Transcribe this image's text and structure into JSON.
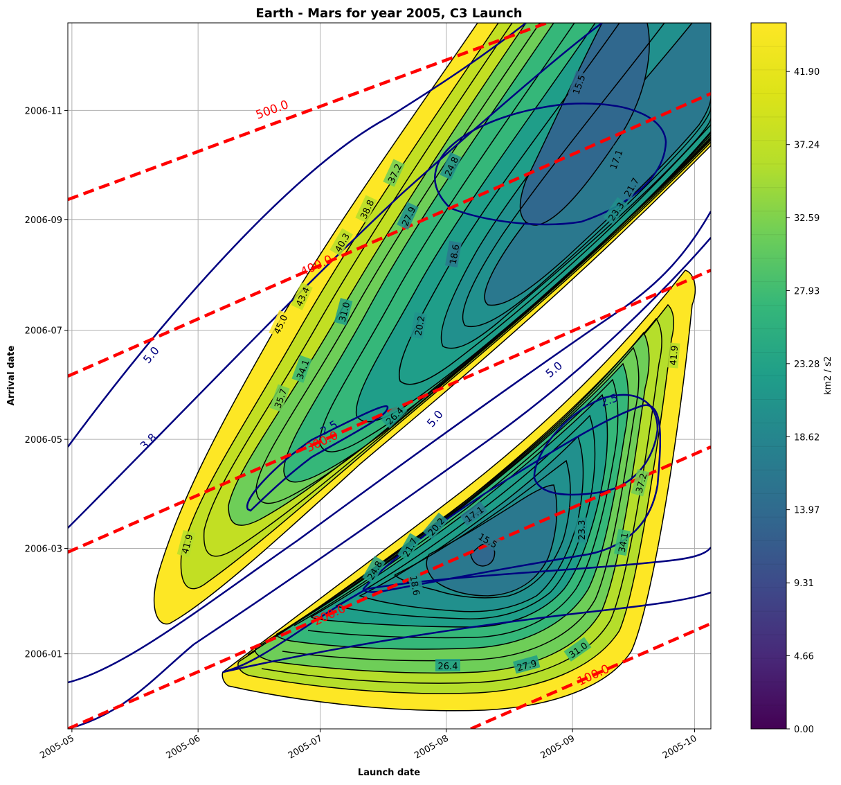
{
  "chart_data": {
    "type": "contour",
    "title": "Earth - Mars for year 2005, C3 Launch",
    "xlabel": "Launch date",
    "ylabel": "Arrival date",
    "x_range": [
      "2005-04-30",
      "2005-10-05"
    ],
    "y_range": [
      "2005-11-20",
      "2006-12-20"
    ],
    "x_ticks": [
      "2005-05",
      "2005-06",
      "2005-07",
      "2005-08",
      "2005-09",
      "2005-10"
    ],
    "y_ticks": [
      "2006-01",
      "2006-03",
      "2006-05",
      "2006-07",
      "2006-09",
      "2006-11"
    ],
    "grid": true,
    "colorbar": {
      "label": "km2 / s2",
      "colormap": "viridis",
      "range": [
        0,
        45
      ],
      "ticks": [
        "0.00",
        "4.66",
        "9.31",
        "13.97",
        "18.62",
        "23.28",
        "27.93",
        "32.59",
        "37.24",
        "41.90"
      ]
    },
    "c3_contour_labels_upper_window": [
      "15.5",
      "17.1",
      "18.6",
      "20.2",
      "21.7",
      "23.3",
      "24.8",
      "26.4",
      "27.9",
      "31.0",
      "34.1",
      "35.7",
      "37.2",
      "38.8",
      "40.3",
      "41.9",
      "43.4",
      "45.0"
    ],
    "c3_contour_labels_lower_window": [
      "15.5",
      "17.1",
      "18.6",
      "20.2",
      "21.7",
      "23.3",
      "24.8",
      "26.4",
      "27.9",
      "31.0",
      "34.1",
      "37.2",
      "41.9"
    ],
    "vinf_lines": {
      "color": "#000080",
      "levels": [
        "2.5",
        "3.8",
        "5.0"
      ]
    },
    "tof_lines": {
      "color": "#ff0000",
      "style": "dashed",
      "levels": [
        "100.0",
        "200.0",
        "300.0",
        "400.0",
        "500.0"
      ]
    }
  },
  "colors": {
    "vinf": "#000080",
    "tof": "#ff0000",
    "grid": "#b0b0b0"
  }
}
